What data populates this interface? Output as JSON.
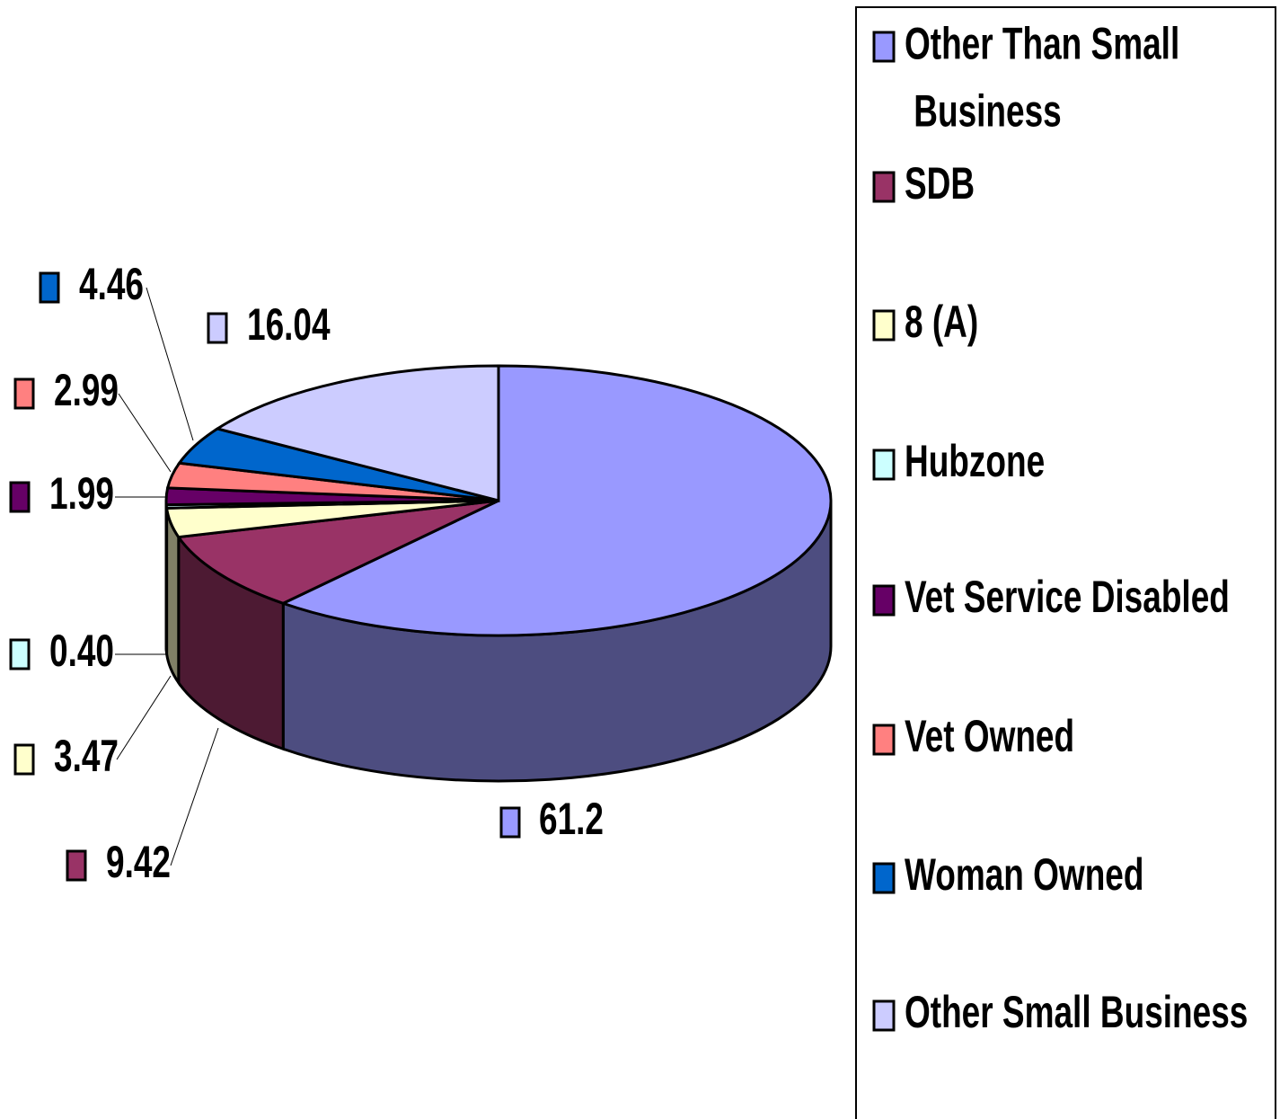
{
  "chart_data": {
    "type": "pie",
    "categories": [
      "Other Than Small Business",
      "SDB",
      "8 (A)",
      "Hubzone",
      "Vet Service Disabled",
      "Vet Owned",
      "Woman Owned",
      "Other Small Business"
    ],
    "values": [
      61.2,
      9.42,
      3.47,
      0.4,
      1.99,
      2.99,
      4.46,
      16.04
    ],
    "value_labels": [
      "61.2",
      "9.42",
      "3.47",
      "0.40",
      "1.99",
      "2.99",
      "4.46",
      "16.04"
    ],
    "colors": [
      "#9999ff",
      "#993366",
      "#ffffcc",
      "#ccffff",
      "#660066",
      "#ff8080",
      "#0066cc",
      "#ccccff"
    ],
    "legend": "right"
  }
}
